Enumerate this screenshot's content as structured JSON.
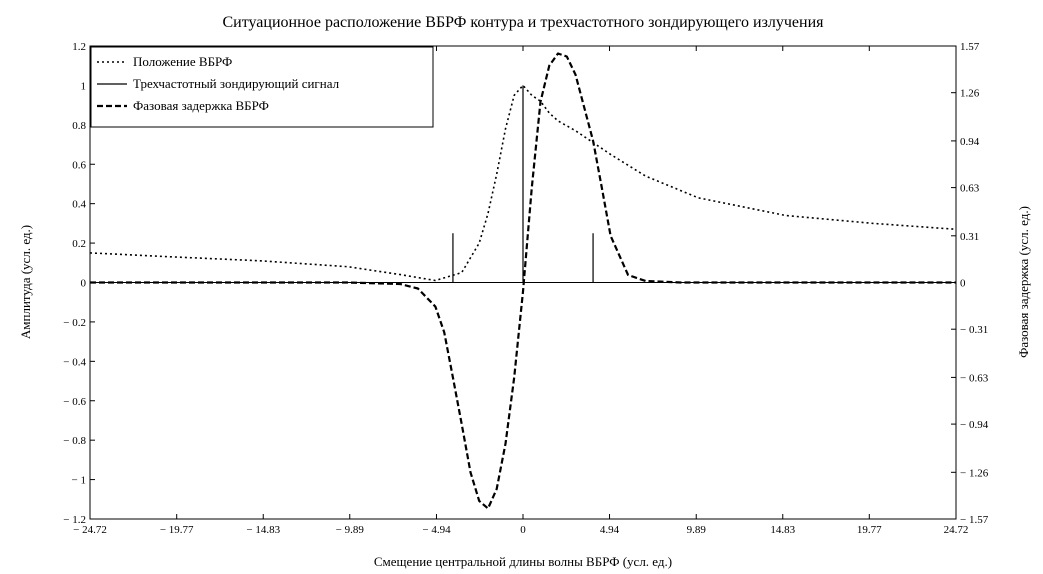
{
  "chart_data": {
    "type": "line",
    "title": "Ситуационное расположение ВБРФ контура и трехчастотного зондирующего излучения",
    "xlabel": "Смещение центральной длины волны ВБРФ (усл. ед.)",
    "ylabel": "Амплитуда  (усл. ед.)",
    "y2label": "Фазовая задержка  (усл. ед.)",
    "xlim": [
      -24.72,
      24.72
    ],
    "ylim": [
      -1.2,
      1.2
    ],
    "y2lim": [
      -1.57,
      1.57
    ],
    "xticks": [
      -24.72,
      -19.77,
      -14.83,
      -9.89,
      -4.94,
      0,
      4.94,
      9.89,
      14.83,
      19.77,
      24.72
    ],
    "xtick_labels": [
      "− 24.72",
      "− 19.77",
      "− 14.83",
      "− 9.89",
      "− 4.94",
      "0",
      "4.94",
      "9.89",
      "14.83",
      "19.77",
      "24.72"
    ],
    "yticks": [
      1.2,
      1,
      0.8,
      0.6,
      0.4,
      0.2,
      0,
      -0.2,
      -0.4,
      -0.6,
      -0.8,
      -1,
      -1.2
    ],
    "ytick_labels": [
      "1.2",
      "1",
      "0.8",
      "0.6",
      "0.4",
      "0.2",
      "0",
      "− 0.2",
      "− 0.4",
      "− 0.6",
      "− 0.8",
      "− 1",
      "− 1.2"
    ],
    "y2ticks": [
      1.57,
      1.26,
      0.94,
      0.63,
      0.31,
      0,
      -0.31,
      -0.63,
      -0.94,
      -1.26,
      -1.57
    ],
    "y2tick_labels": [
      "1.57",
      "1.26",
      "0.94",
      "0.63",
      "0.31",
      "0",
      "− 0.31",
      "− 0.63",
      "− 0.94",
      "− 1.26",
      "− 1.57"
    ],
    "grid": false,
    "legend_position": "top-left",
    "series": [
      {
        "name": "Положение ВБРФ",
        "style": "dotted",
        "axis": "left",
        "x": [
          -24.72,
          -20,
          -15,
          -10,
          -7,
          -5,
          -3.5,
          -2.5,
          -2,
          -1.5,
          -1,
          -0.5,
          0,
          0.5,
          1,
          1.5,
          2,
          3,
          4,
          5,
          7,
          10,
          15,
          20,
          24.72
        ],
        "y": [
          0.15,
          0.13,
          0.11,
          0.08,
          0.04,
          0.01,
          0.05,
          0.2,
          0.35,
          0.55,
          0.78,
          0.95,
          1.0,
          0.95,
          0.92,
          0.86,
          0.82,
          0.77,
          0.71,
          0.65,
          0.54,
          0.43,
          0.34,
          0.3,
          0.27
        ]
      },
      {
        "name": "Трехчастотный зондирующий сигнал",
        "style": "solid",
        "axis": "left",
        "x": [
          -4,
          0,
          4
        ],
        "y": [
          0.25,
          1.0,
          0.25
        ]
      },
      {
        "name": "Фазовая задержка ВБРФ",
        "style": "dashed",
        "axis": "right",
        "x": [
          -24.72,
          -10,
          -7,
          -6,
          -5,
          -4.5,
          -4,
          -3.5,
          -3,
          -2.5,
          -2,
          -1.5,
          -1,
          -0.5,
          0,
          0.5,
          1,
          1.5,
          2,
          2.5,
          3,
          4,
          4.5,
          5,
          6,
          7,
          9,
          24.72
        ],
        "y": [
          0,
          0,
          -0.01,
          -0.04,
          -0.16,
          -0.33,
          -0.63,
          -0.94,
          -1.26,
          -1.45,
          -1.5,
          -1.37,
          -1.07,
          -0.63,
          -0.06,
          0.63,
          1.2,
          1.44,
          1.52,
          1.5,
          1.38,
          0.94,
          0.63,
          0.31,
          0.05,
          0.01,
          0,
          0
        ]
      }
    ]
  }
}
